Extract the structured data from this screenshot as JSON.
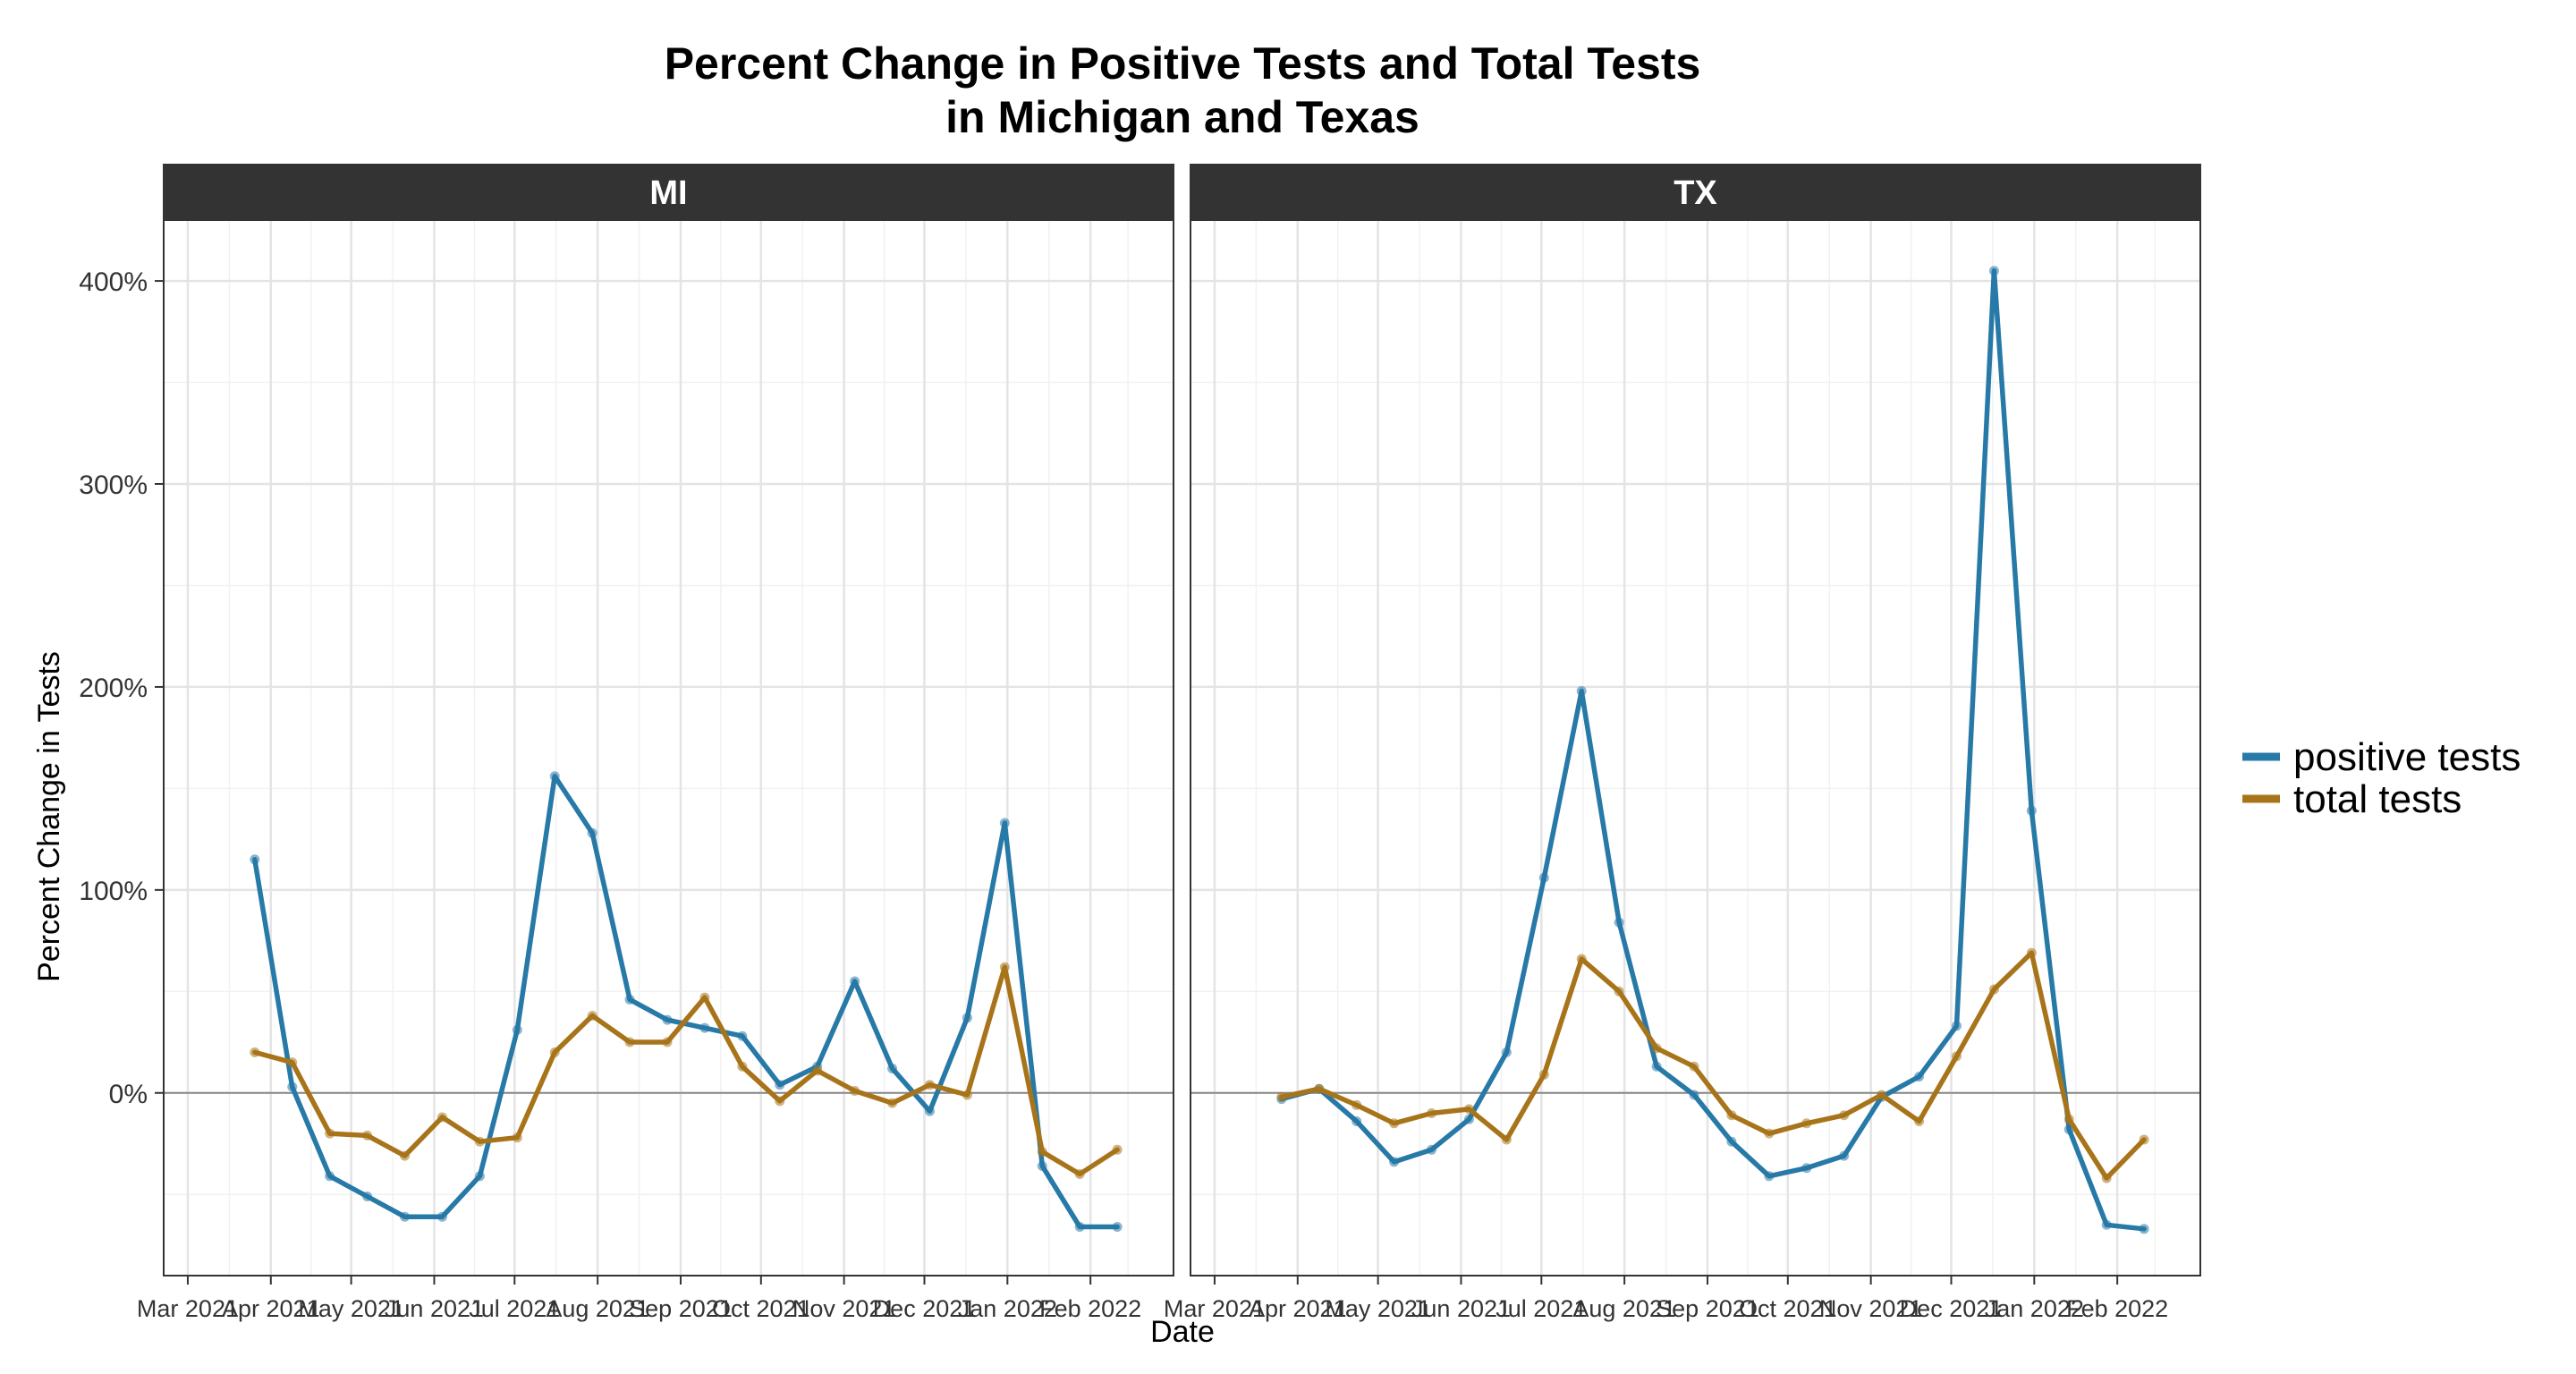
{
  "chart_data": {
    "type": "line",
    "title": "Percent Change in Positive Tests and Total Tests\nin Michigan and Texas",
    "xlabel": "Date",
    "ylabel": "Percent Change in Tests",
    "ylim": [
      -90,
      430
    ],
    "y_ticks": [
      0,
      100,
      200,
      300,
      400
    ],
    "y_tick_labels": [
      "0%",
      "100%",
      "200%",
      "300%",
      "400%"
    ],
    "x_ticks": [
      "2021-03-01",
      "2021-04-01",
      "2021-05-01",
      "2021-06-01",
      "2021-07-01",
      "2021-08-01",
      "2021-09-01",
      "2021-10-01",
      "2021-11-01",
      "2021-12-01",
      "2022-01-01",
      "2022-02-01"
    ],
    "x_tick_labels": [
      "Mar 2021",
      "Apr 2021",
      "May 2021",
      "Jun 2021",
      "Jul 2021",
      "Aug 2021",
      "Sep 2021",
      "Oct 2021",
      "Nov 2021",
      "Dec 2021",
      "Jan 2022",
      "Feb 2022"
    ],
    "grid": true,
    "legend_position": "right",
    "colors": {
      "positive tests": "#2779a7",
      "total tests": "#a8741a"
    },
    "panels": [
      {
        "name": "MI",
        "x": [
          "2021-03-26",
          "2021-04-09",
          "2021-04-23",
          "2021-05-07",
          "2021-05-21",
          "2021-06-04",
          "2021-06-18",
          "2021-07-02",
          "2021-07-16",
          "2021-07-30",
          "2021-08-13",
          "2021-08-27",
          "2021-09-10",
          "2021-09-24",
          "2021-10-08",
          "2021-10-22",
          "2021-11-05",
          "2021-11-19",
          "2021-12-03",
          "2021-12-17",
          "2021-12-31",
          "2022-01-14",
          "2022-01-28",
          "2022-02-11",
          "2022-02-25"
        ],
        "series": [
          {
            "name": "positive tests",
            "values": [
              115,
              3,
              -41,
              -51,
              -61,
              -61,
              -41,
              31,
              156,
              128,
              46,
              36,
              32,
              28,
              4,
              13,
              55,
              12,
              -9,
              37,
              133,
              -36,
              -66,
              -66,
              null
            ]
          },
          {
            "name": "total tests",
            "values": [
              20,
              15,
              -20,
              -21,
              -31,
              -12,
              -24,
              -22,
              20,
              38,
              25,
              25,
              47,
              13,
              -4,
              11,
              1,
              -5,
              4,
              -1,
              62,
              -29,
              -40,
              -28,
              null
            ]
          }
        ]
      },
      {
        "name": "TX",
        "x": [
          "2021-03-26",
          "2021-04-09",
          "2021-04-23",
          "2021-05-07",
          "2021-05-21",
          "2021-06-04",
          "2021-06-18",
          "2021-07-02",
          "2021-07-16",
          "2021-07-30",
          "2021-08-13",
          "2021-08-27",
          "2021-09-10",
          "2021-09-24",
          "2021-10-08",
          "2021-10-22",
          "2021-11-05",
          "2021-11-19",
          "2021-12-03",
          "2021-12-17",
          "2021-12-31",
          "2022-01-14",
          "2022-01-28",
          "2022-02-11",
          "2022-02-25"
        ],
        "series": [
          {
            "name": "positive tests",
            "values": [
              -3,
              2,
              -14,
              -34,
              -28,
              -13,
              20,
              106,
              198,
              84,
              13,
              -1,
              -24,
              -41,
              -37,
              -31,
              -2,
              8,
              33,
              405,
              139,
              -18,
              -65,
              -67,
              null
            ]
          },
          {
            "name": "total tests",
            "values": [
              -2,
              2,
              -6,
              -15,
              -10,
              -8,
              -23,
              9,
              66,
              50,
              22,
              13,
              -11,
              -20,
              -15,
              -11,
              -1,
              -14,
              18,
              51,
              69,
              -13,
              -42,
              -23,
              null
            ]
          }
        ]
      }
    ]
  }
}
